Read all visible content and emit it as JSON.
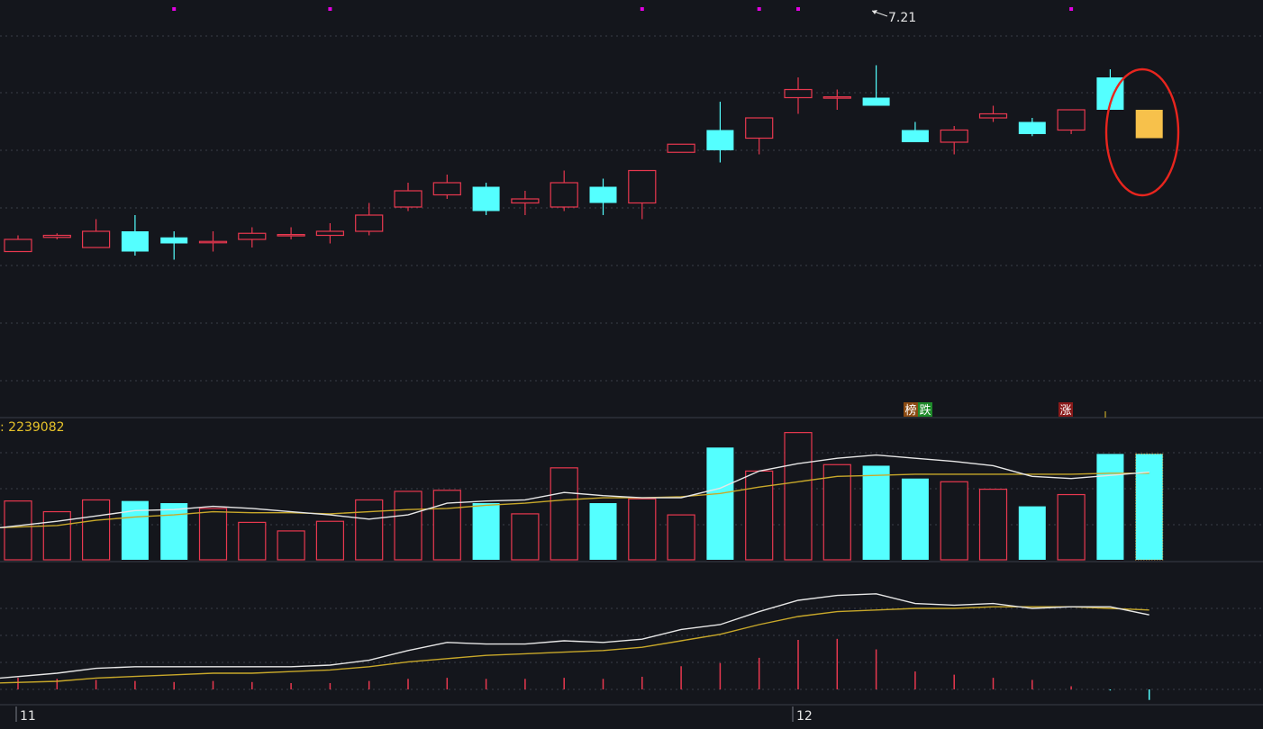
{
  "colors": {
    "background": "#14161c",
    "up": "#e8384f",
    "down": "#54ffff",
    "highlight": "#f7c14b",
    "ellipse": "#e8251e",
    "grid": "#3a3f48",
    "ma_white": "#e6e6e6",
    "ma_yellow": "#c8a82a",
    "label_yellow": "#e6c22a",
    "signal_dot": "#e200e2"
  },
  "price_panel": {
    "high_label": "7.21"
  },
  "volume_panel": {
    "value_label": ": 2239082"
  },
  "markers": [
    {
      "text": "榜",
      "bg": "#8a4a12",
      "fg": "#ffffff"
    },
    {
      "text": "跌",
      "bg": "#1e8a2a",
      "fg": "#ffffff"
    },
    {
      "text": "涨",
      "bg": "#8a1a1a",
      "fg": "#ffffff"
    }
  ],
  "axis": {
    "labels": [
      "11",
      "12"
    ]
  },
  "chart_data": {
    "type": "candlestick",
    "candles": [
      {
        "i": 0,
        "o": 0.42,
        "c": 0.39,
        "h": 0.43,
        "l": 0.39,
        "dir": "up"
      },
      {
        "i": 1,
        "o": 0.43,
        "c": 0.425,
        "h": 0.435,
        "l": 0.42,
        "dir": "up"
      },
      {
        "i": 2,
        "o": 0.4,
        "c": 0.44,
        "h": 0.47,
        "l": 0.4,
        "dir": "up"
      },
      {
        "i": 3,
        "o": 0.44,
        "c": 0.39,
        "h": 0.48,
        "l": 0.38,
        "dir": "down"
      },
      {
        "i": 4,
        "o": 0.425,
        "c": 0.41,
        "h": 0.44,
        "l": 0.37,
        "dir": "down"
      },
      {
        "i": 5,
        "o": 0.415,
        "c": 0.414,
        "h": 0.44,
        "l": 0.39,
        "dir": "up"
      },
      {
        "i": 6,
        "o": 0.42,
        "c": 0.435,
        "h": 0.45,
        "l": 0.4,
        "dir": "up"
      },
      {
        "i": 7,
        "o": 0.43,
        "c": 0.432,
        "h": 0.45,
        "l": 0.42,
        "dir": "up"
      },
      {
        "i": 8,
        "o": 0.43,
        "c": 0.44,
        "h": 0.46,
        "l": 0.41,
        "dir": "up"
      },
      {
        "i": 9,
        "o": 0.44,
        "c": 0.48,
        "h": 0.51,
        "l": 0.43,
        "dir": "up"
      },
      {
        "i": 10,
        "o": 0.5,
        "c": 0.54,
        "h": 0.56,
        "l": 0.49,
        "dir": "up"
      },
      {
        "i": 11,
        "o": 0.53,
        "c": 0.56,
        "h": 0.58,
        "l": 0.52,
        "dir": "up"
      },
      {
        "i": 12,
        "o": 0.55,
        "c": 0.49,
        "h": 0.56,
        "l": 0.48,
        "dir": "down"
      },
      {
        "i": 13,
        "o": 0.51,
        "c": 0.52,
        "h": 0.54,
        "l": 0.48,
        "dir": "up"
      },
      {
        "i": 14,
        "o": 0.5,
        "c": 0.56,
        "h": 0.59,
        "l": 0.49,
        "dir": "up"
      },
      {
        "i": 15,
        "o": 0.55,
        "c": 0.51,
        "h": 0.57,
        "l": 0.48,
        "dir": "down"
      },
      {
        "i": 16,
        "o": 0.51,
        "c": 0.59,
        "h": 0.59,
        "l": 0.47,
        "dir": "up"
      },
      {
        "i": 17,
        "o": 0.635,
        "c": 0.655,
        "h": 0.655,
        "l": 0.635,
        "dir": "up"
      },
      {
        "i": 18,
        "o": 0.69,
        "c": 0.64,
        "h": 0.76,
        "l": 0.61,
        "dir": "down"
      },
      {
        "i": 19,
        "o": 0.67,
        "c": 0.72,
        "h": 0.72,
        "l": 0.63,
        "dir": "up"
      },
      {
        "i": 20,
        "o": 0.77,
        "c": 0.79,
        "h": 0.82,
        "l": 0.73,
        "dir": "up"
      },
      {
        "i": 21,
        "o": 0.77,
        "c": 0.772,
        "h": 0.79,
        "l": 0.74,
        "dir": "up"
      },
      {
        "i": 22,
        "o": 0.77,
        "c": 0.75,
        "h": 0.85,
        "l": 0.75,
        "dir": "down"
      },
      {
        "i": 23,
        "o": 0.69,
        "c": 0.66,
        "h": 0.71,
        "l": 0.66,
        "dir": "down"
      },
      {
        "i": 24,
        "o": 0.66,
        "c": 0.69,
        "h": 0.7,
        "l": 0.63,
        "dir": "up"
      },
      {
        "i": 25,
        "o": 0.72,
        "c": 0.73,
        "h": 0.75,
        "l": 0.71,
        "dir": "up"
      },
      {
        "i": 26,
        "o": 0.71,
        "c": 0.68,
        "h": 0.72,
        "l": 0.675,
        "dir": "down"
      },
      {
        "i": 27,
        "o": 0.69,
        "c": 0.74,
        "h": 0.74,
        "l": 0.68,
        "dir": "up"
      },
      {
        "i": 28,
        "o": 0.82,
        "c": 0.74,
        "h": 0.84,
        "l": 0.74,
        "dir": "down"
      },
      {
        "i": 29,
        "o": 0.74,
        "c": 0.67,
        "h": 0.74,
        "l": 0.67,
        "dir": "highlight"
      }
    ],
    "volume": [
      0.55,
      0.45,
      0.56,
      0.55,
      0.53,
      0.48,
      0.35,
      0.27,
      0.36,
      0.56,
      0.64,
      0.65,
      0.53,
      0.43,
      0.86,
      0.53,
      0.57,
      0.42,
      1.05,
      0.83,
      1.19,
      0.89,
      0.88,
      0.76,
      0.73,
      0.66,
      0.5,
      0.61,
      0.99,
      0.99
    ],
    "volume_ma_white": [
      0.3,
      0.36,
      0.41,
      0.46,
      0.47,
      0.5,
      0.48,
      0.45,
      0.42,
      0.38,
      0.42,
      0.53,
      0.55,
      0.56,
      0.63,
      0.6,
      0.58,
      0.58,
      0.67,
      0.83,
      0.9,
      0.95,
      0.98,
      0.95,
      0.92,
      0.88,
      0.78,
      0.76,
      0.79,
      0.82
    ],
    "volume_ma_yellow": [
      0.3,
      0.32,
      0.37,
      0.4,
      0.42,
      0.45,
      0.44,
      0.44,
      0.43,
      0.45,
      0.47,
      0.48,
      0.51,
      0.53,
      0.56,
      0.58,
      0.58,
      0.59,
      0.62,
      0.68,
      0.73,
      0.78,
      0.79,
      0.8,
      0.8,
      0.8,
      0.8,
      0.8,
      0.81,
      0.81
    ],
    "indicator_white": [
      0.07,
      0.1,
      0.13,
      0.14,
      0.14,
      0.14,
      0.14,
      0.14,
      0.15,
      0.18,
      0.24,
      0.29,
      0.28,
      0.28,
      0.3,
      0.29,
      0.31,
      0.37,
      0.4,
      0.48,
      0.55,
      0.58,
      0.59,
      0.53,
      0.52,
      0.53,
      0.5,
      0.51,
      0.51,
      0.46
    ],
    "indicator_yellow": [
      0.04,
      0.05,
      0.07,
      0.08,
      0.09,
      0.1,
      0.1,
      0.11,
      0.12,
      0.14,
      0.17,
      0.19,
      0.21,
      0.22,
      0.23,
      0.24,
      0.26,
      0.3,
      0.34,
      0.4,
      0.45,
      0.48,
      0.49,
      0.5,
      0.5,
      0.51,
      0.51,
      0.51,
      0.5,
      0.49
    ],
    "indicator_bars": [
      0.11,
      0.1,
      0.09,
      0.08,
      0.07,
      0.08,
      0.07,
      0.06,
      0.06,
      0.08,
      0.1,
      0.11,
      0.1,
      0.1,
      0.11,
      0.1,
      0.12,
      0.22,
      0.25,
      0.3,
      0.47,
      0.48,
      0.38,
      0.17,
      0.14,
      0.11,
      0.09,
      0.03,
      -0.01,
      -0.1
    ]
  }
}
